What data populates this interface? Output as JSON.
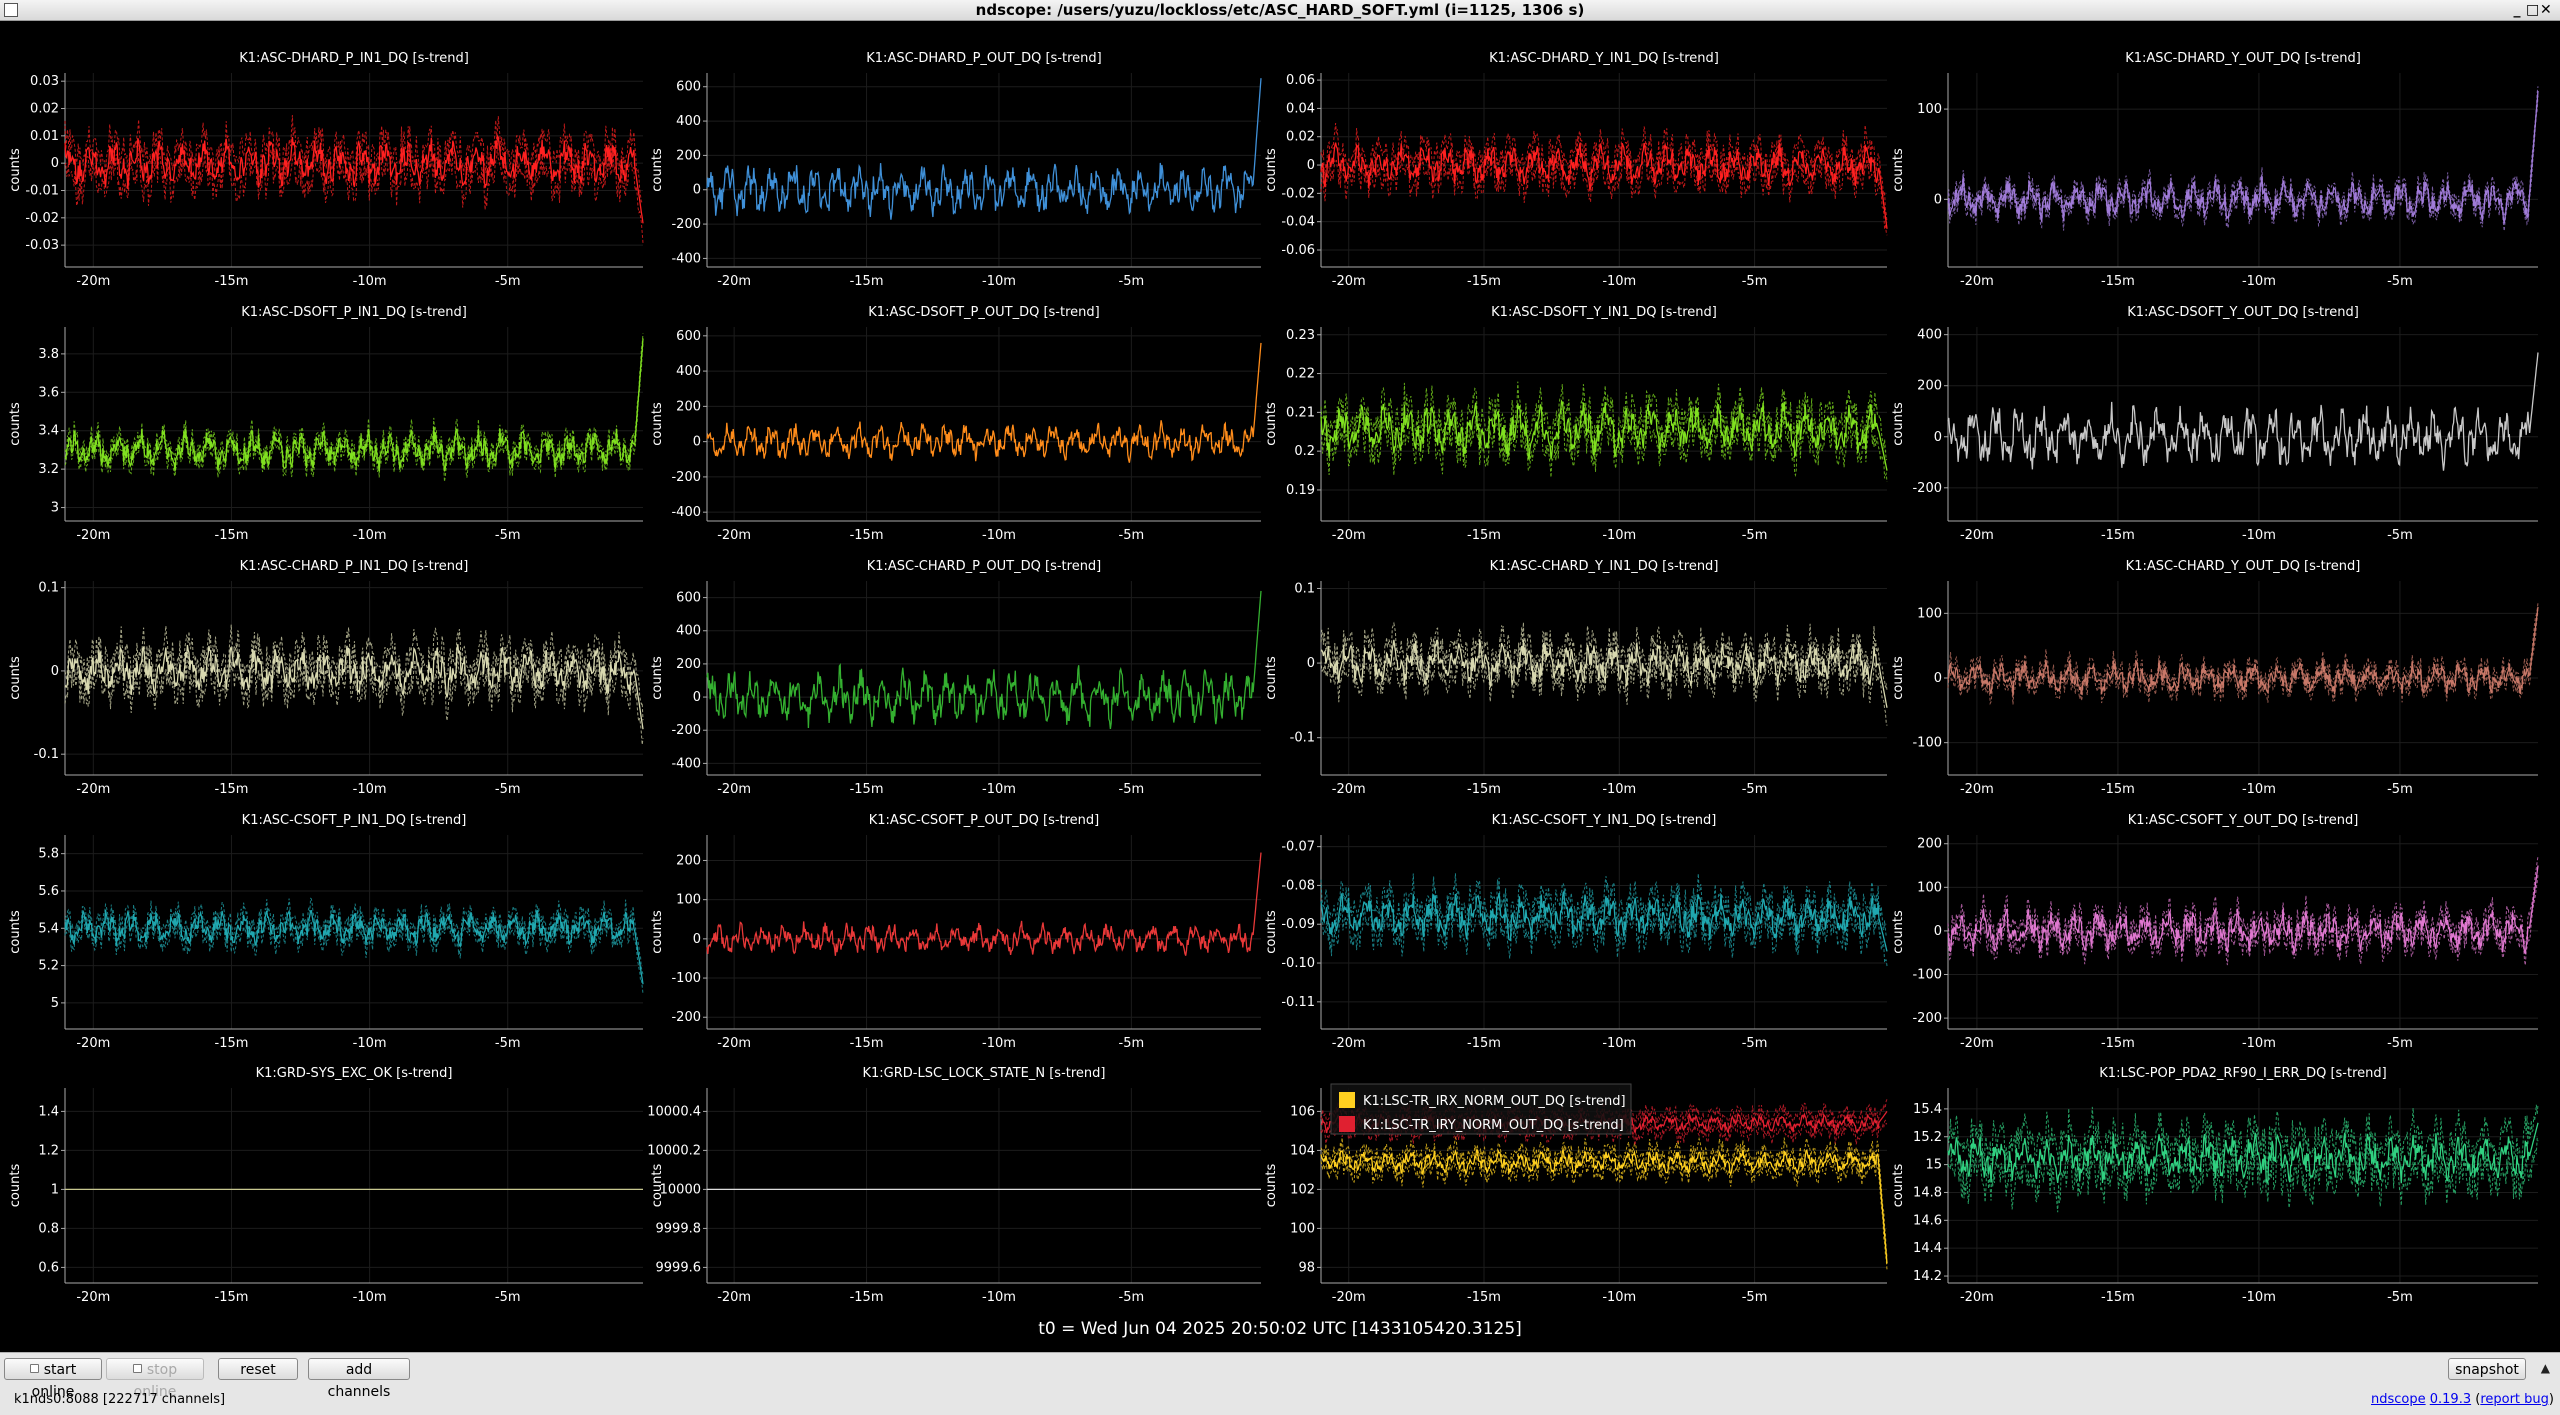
{
  "window": {
    "title": "ndscope: /users/yuzu/lockloss/etc/ASC_HARD_SOFT.yml (i=1125, 1306 s)",
    "controls": [
      "_",
      "□",
      "✕"
    ]
  },
  "t0": "t0 = Wed Jun 04 2025 20:50:02 UTC [1433105420.3125]",
  "toolbar": {
    "start_online": "start online",
    "stop_online": "stop online",
    "reset": "reset",
    "add_channels": "add channels",
    "snapshot": "snapshot"
  },
  "status": {
    "server": "k1nds0:8088  [222717 channels]",
    "app_name": "ndscope",
    "version": "0.19.3",
    "report_bug": "report bug"
  },
  "ylabel": "counts",
  "xticks": [
    "-20m",
    "-15m",
    "-10m",
    "-5m"
  ],
  "chart_data": [
    {
      "type": "line",
      "title": "K1:ASC-DHARD_P_IN1_DQ [s-trend]",
      "yticks": [
        "0.03",
        "0.02",
        "0.01",
        "0",
        "-0.01",
        "-0.02",
        "-0.03"
      ],
      "ylim": [
        -0.038,
        0.033
      ],
      "series": [
        {
          "color": "#ff2020",
          "center": 0.0,
          "amp": 0.008,
          "band": 0.006,
          "end_spike": -0.022
        }
      ]
    },
    {
      "type": "line",
      "title": "K1:ASC-DHARD_P_OUT_DQ [s-trend]",
      "yticks": [
        "600",
        "400",
        "200",
        "0",
        "-200",
        "-400"
      ],
      "ylim": [
        -450,
        680
      ],
      "series": [
        {
          "color": "#3f90d8",
          "center": 0,
          "amp": 130,
          "band": 0,
          "end_spike": 650
        }
      ]
    },
    {
      "type": "line",
      "title": "K1:ASC-DHARD_Y_IN1_DQ [s-trend]",
      "yticks": [
        "0.06",
        "0.04",
        "0.02",
        "0",
        "-0.02",
        "-0.04",
        "-0.06"
      ],
      "ylim": [
        -0.072,
        0.065
      ],
      "series": [
        {
          "color": "#ff2020",
          "center": 0.0,
          "amp": 0.013,
          "band": 0.01,
          "end_spike": -0.045
        }
      ]
    },
    {
      "type": "line",
      "title": "K1:ASC-DHARD_Y_OUT_DQ [s-trend]",
      "yticks": [
        "100",
        "0"
      ],
      "ylim": [
        -75,
        140
      ],
      "series": [
        {
          "color": "#a07bd8",
          "center": 0,
          "amp": 20,
          "band": 8,
          "end_spike": 120
        }
      ]
    },
    {
      "type": "line",
      "title": "K1:ASC-DSOFT_P_IN1_DQ [s-trend]",
      "yticks": [
        "3.8",
        "3.6",
        "3.4",
        "3.2",
        "3"
      ],
      "ylim": [
        2.93,
        3.94
      ],
      "series": [
        {
          "color": "#80e020",
          "center": 3.3,
          "amp": 0.09,
          "band": 0.04,
          "end_spike": 3.88
        }
      ]
    },
    {
      "type": "line",
      "title": "K1:ASC-DSOFT_P_OUT_DQ [s-trend]",
      "yticks": [
        "600",
        "400",
        "200",
        "0",
        "-200",
        "-400"
      ],
      "ylim": [
        -450,
        650
      ],
      "series": [
        {
          "color": "#ff8c1a",
          "center": 0,
          "amp": 90,
          "band": 0,
          "end_spike": 560
        }
      ]
    },
    {
      "type": "line",
      "title": "K1:ASC-DSOFT_Y_IN1_DQ [s-trend]",
      "yticks": [
        "0.23",
        "0.22",
        "0.21",
        "0.2",
        "0.19"
      ],
      "ylim": [
        0.182,
        0.232
      ],
      "series": [
        {
          "color": "#80e020",
          "center": 0.2055,
          "amp": 0.006,
          "band": 0.004,
          "end_spike": 0.195
        }
      ]
    },
    {
      "type": "line",
      "title": "K1:ASC-DSOFT_Y_OUT_DQ [s-trend]",
      "yticks": [
        "400",
        "200",
        "0",
        "-200"
      ],
      "ylim": [
        -330,
        430
      ],
      "series": [
        {
          "color": "#c8c8c8",
          "center": 0,
          "amp": 110,
          "band": 0,
          "end_spike": 330
        }
      ]
    },
    {
      "type": "line",
      "title": "K1:ASC-CHARD_P_IN1_DQ [s-trend]",
      "yticks": [
        "0.1",
        "0",
        "-0.1"
      ],
      "ylim": [
        -0.125,
        0.108
      ],
      "series": [
        {
          "color": "#d8d8b0",
          "center": 0.0,
          "amp": 0.025,
          "band": 0.02,
          "end_spike": -0.07
        }
      ]
    },
    {
      "type": "line",
      "title": "K1:ASC-CHARD_P_OUT_DQ [s-trend]",
      "yticks": [
        "600",
        "400",
        "200",
        "0",
        "-200",
        "-400"
      ],
      "ylim": [
        -470,
        700
      ],
      "series": [
        {
          "color": "#34b030",
          "center": 0,
          "amp": 150,
          "band": 0,
          "end_spike": 640
        }
      ]
    },
    {
      "type": "line",
      "title": "K1:ASC-CHARD_Y_IN1_DQ [s-trend]",
      "yticks": [
        "0.1",
        "0",
        "-0.1"
      ],
      "ylim": [
        -0.15,
        0.11
      ],
      "series": [
        {
          "color": "#d8d8b0",
          "center": 0.0,
          "amp": 0.025,
          "band": 0.02,
          "end_spike": -0.06
        }
      ]
    },
    {
      "type": "line",
      "title": "K1:ASC-CHARD_Y_OUT_DQ [s-trend]",
      "yticks": [
        "100",
        "0",
        "-100"
      ],
      "ylim": [
        -150,
        150
      ],
      "series": [
        {
          "color": "#c87868",
          "center": 0,
          "amp": 22,
          "band": 12,
          "end_spike": 110
        }
      ]
    },
    {
      "type": "line",
      "title": "K1:ASC-CSOFT_P_IN1_DQ [s-trend]",
      "yticks": [
        "5.8",
        "5.6",
        "5.4",
        "5.2",
        "5"
      ],
      "ylim": [
        4.86,
        5.9
      ],
      "series": [
        {
          "color": "#20a8b0",
          "center": 5.4,
          "amp": 0.08,
          "band": 0.05,
          "end_spike": 5.1
        }
      ]
    },
    {
      "type": "line",
      "title": "K1:ASC-CSOFT_P_OUT_DQ [s-trend]",
      "yticks": [
        "200",
        "100",
        "0",
        "-100",
        "-200"
      ],
      "ylim": [
        -230,
        265
      ],
      "series": [
        {
          "color": "#e83838",
          "center": 0,
          "amp": 35,
          "band": 0,
          "end_spike": 220
        }
      ]
    },
    {
      "type": "line",
      "title": "K1:ASC-CSOFT_Y_IN1_DQ [s-trend]",
      "yticks": [
        "-0.07",
        "-0.08",
        "-0.09",
        "-0.10",
        "-0.11"
      ],
      "ylim": [
        -0.117,
        -0.067
      ],
      "series": [
        {
          "color": "#20a8b0",
          "center": -0.088,
          "amp": 0.005,
          "band": 0.004,
          "end_spike": -0.097
        }
      ]
    },
    {
      "type": "line",
      "title": "K1:ASC-CSOFT_Y_OUT_DQ [s-trend]",
      "yticks": [
        "200",
        "100",
        "0",
        "-100",
        "-200"
      ],
      "ylim": [
        -225,
        220
      ],
      "series": [
        {
          "color": "#e078d0",
          "center": 0,
          "amp": 40,
          "band": 25,
          "end_spike": 150
        }
      ]
    },
    {
      "type": "line",
      "title": "K1:GRD-SYS_EXC_OK [s-trend]",
      "yticks": [
        "1.4",
        "1.2",
        "1",
        "0.8",
        "0.6"
      ],
      "ylim": [
        0.52,
        1.52
      ],
      "series": [
        {
          "color": "#c8c890",
          "center": 1,
          "amp": 0,
          "band": 0,
          "end_spike": 1
        }
      ]
    },
    {
      "type": "line",
      "title": "K1:GRD-LSC_LOCK_STATE_N [s-trend]",
      "yticks": [
        "10000.4",
        "10000.2",
        "10000",
        "9999.8",
        "9999.6"
      ],
      "ylim": [
        9999.52,
        10000.52
      ],
      "series": [
        {
          "color": "#dddddd",
          "center": 10000,
          "amp": 0,
          "band": 0,
          "end_spike": 10000
        }
      ]
    },
    {
      "type": "line",
      "title": "",
      "yticks": [
        "106",
        "104",
        "102",
        "100",
        "98"
      ],
      "ylim": [
        97.2,
        107.2
      ],
      "legend": "top-left",
      "series": [
        {
          "name": "K1:LSC-TR_IRX_NORM_OUT_DQ [s-trend]",
          "color": "#ffd020",
          "center": 103.4,
          "amp": 0.5,
          "band": 0.5,
          "end_spike": 98.2
        },
        {
          "name": "K1:LSC-TR_IRY_NORM_OUT_DQ [s-trend]",
          "color": "#e02030",
          "center": 105.4,
          "amp": 0.4,
          "band": 0.5,
          "end_spike": 106
        }
      ]
    },
    {
      "type": "line",
      "title": "K1:LSC-POP_PDA2_RF90_I_ERR_DQ [s-trend]",
      "yticks": [
        "15.4",
        "15.2",
        "15",
        "14.8",
        "14.6",
        "14.4",
        "14.2"
      ],
      "ylim": [
        14.15,
        15.55
      ],
      "series": [
        {
          "color": "#30d080",
          "center": 15.05,
          "amp": 0.15,
          "band": 0.15,
          "end_spike": 15.3
        }
      ]
    }
  ]
}
